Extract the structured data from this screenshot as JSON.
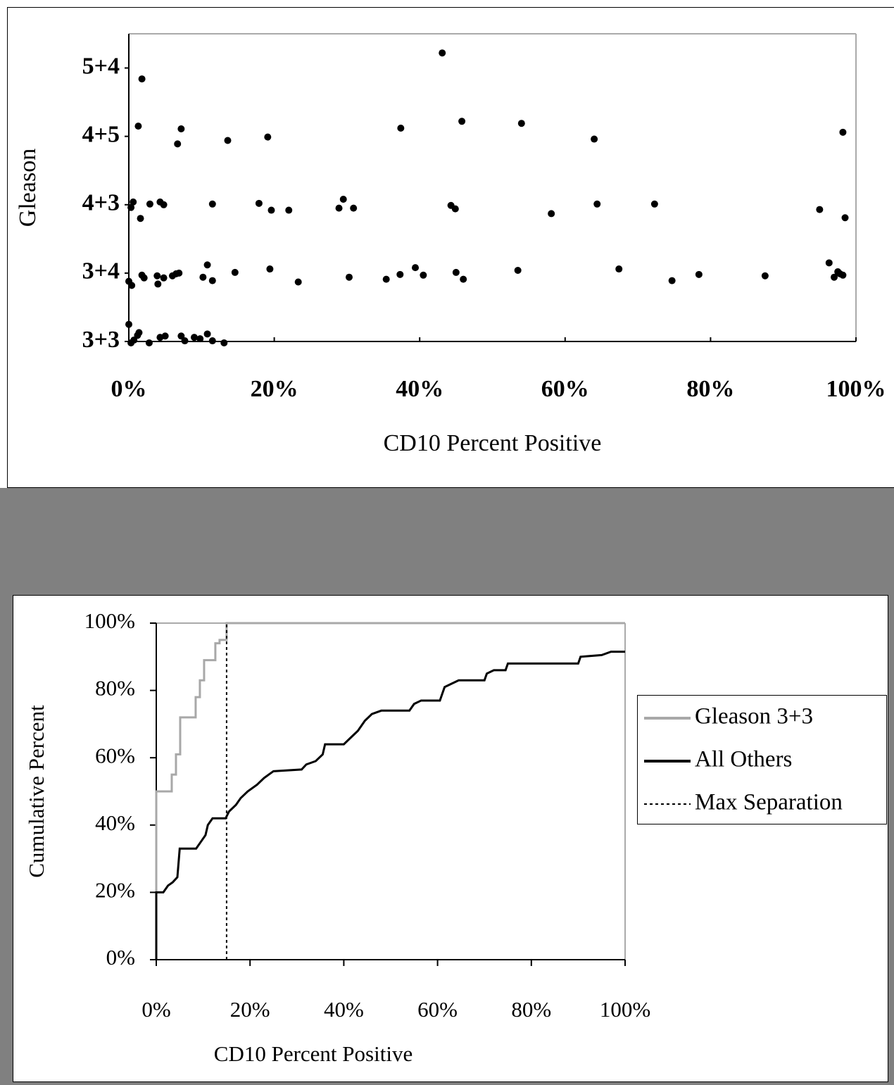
{
  "chart_data": [
    {
      "type": "scatter",
      "y_label": "Gleason",
      "x_label": "CD10 Percent Positive",
      "xlim": [
        0,
        100
      ],
      "xticks": [
        {
          "value": 0,
          "label": "0%"
        },
        {
          "value": 20,
          "label": "20%"
        },
        {
          "value": 40,
          "label": "40%"
        },
        {
          "value": 60,
          "label": "60%"
        },
        {
          "value": 80,
          "label": "80%"
        },
        {
          "value": 100,
          "label": "100%"
        }
      ],
      "ylim": [
        1,
        5.5
      ],
      "yticks": [
        {
          "value": 1,
          "label": "3+3"
        },
        {
          "value": 2,
          "label": "3+4"
        },
        {
          "value": 3,
          "label": "4+3"
        },
        {
          "value": 4,
          "label": "4+5"
        },
        {
          "value": 5,
          "label": "5+4"
        }
      ],
      "grid": false,
      "series": [
        {
          "color": "#000000",
          "x": [
            1.8,
            43.1,
            1.3,
            6.7,
            7.2,
            13.6,
            19.1,
            37.4,
            45.8,
            54.0,
            64.0,
            98.2,
            0.3,
            0.6,
            1.6,
            2.9,
            4.3,
            4.8,
            11.5,
            17.9,
            19.6,
            22.0,
            28.9,
            29.5,
            30.9,
            44.3,
            44.9,
            58.1,
            64.4,
            72.3,
            95.0,
            98.5,
            0,
            0.4,
            1.8,
            2.1,
            3.9,
            4.0,
            4.8,
            6.0,
            6.5,
            6.9,
            10.2,
            10.8,
            11.5,
            14.6,
            19.4,
            23.3,
            30.3,
            35.4,
            37.3,
            39.4,
            40.5,
            45.0,
            46.0,
            53.5,
            67.4,
            74.7,
            78.4,
            87.5,
            96.3,
            97.0,
            97.5,
            97.8,
            98.2,
            0,
            0.3,
            0.7,
            1.2,
            1.4,
            2.8,
            4.3,
            5.0,
            7.2,
            7.7,
            9.0,
            9.8,
            10.8,
            11.5,
            13.1
          ],
          "values": [
            4.84,
            5.22,
            4.15,
            3.89,
            4.11,
            3.94,
            3.99,
            4.12,
            4.22,
            4.19,
            3.96,
            4.06,
            2.96,
            3.04,
            2.8,
            3.01,
            3.04,
            3.0,
            3.01,
            3.02,
            2.92,
            2.92,
            2.95,
            3.08,
            2.95,
            2.99,
            2.94,
            2.87,
            3.01,
            3.01,
            2.93,
            2.81,
            1.88,
            1.82,
            1.97,
            1.93,
            1.96,
            1.84,
            1.93,
            1.96,
            1.99,
            2.0,
            1.94,
            2.12,
            1.89,
            2.01,
            2.06,
            1.87,
            1.94,
            1.91,
            1.98,
            2.08,
            1.97,
            2.01,
            1.91,
            2.04,
            2.06,
            1.89,
            1.98,
            1.96,
            2.15,
            1.94,
            2.02,
            1.99,
            1.97,
            1.25,
            0.98,
            1.02,
            1.09,
            1.13,
            0.98,
            1.06,
            1.08,
            1.08,
            1.01,
            1.06,
            1.04,
            1.11,
            1.01,
            0.98
          ]
        }
      ]
    },
    {
      "type": "line",
      "y_label": "Cumulative Percent",
      "x_label": "CD10 Percent Positive",
      "xlim": [
        0,
        100
      ],
      "xticks": [
        {
          "value": 0,
          "label": "0%"
        },
        {
          "value": 20,
          "label": "20%"
        },
        {
          "value": 40,
          "label": "40%"
        },
        {
          "value": 60,
          "label": "60%"
        },
        {
          "value": 80,
          "label": "80%"
        },
        {
          "value": 100,
          "label": "100%"
        }
      ],
      "ylim": [
        0,
        100
      ],
      "yticks": [
        {
          "value": 0,
          "label": "0%"
        },
        {
          "value": 20,
          "label": "20%"
        },
        {
          "value": 40,
          "label": "40%"
        },
        {
          "value": 60,
          "label": "60%"
        },
        {
          "value": 80,
          "label": "80%"
        },
        {
          "value": 100,
          "label": "100%"
        }
      ],
      "grid": false,
      "legend": "right",
      "series": [
        {
          "name": "Gleason 3+3",
          "color": "#a8a8a8",
          "dashed": false,
          "x": [
            0,
            0,
            3.3,
            3.3,
            4.2,
            4.2,
            5.1,
            5.1,
            8.4,
            8.4,
            9.3,
            9.3,
            10.2,
            10.2,
            12.6,
            12.6,
            13.5,
            13.5,
            15,
            15,
            100
          ],
          "values": [
            0,
            50,
            50,
            55,
            55,
            61,
            61,
            72,
            72,
            78,
            78,
            83,
            83,
            89,
            89,
            94,
            94,
            95,
            95,
            100,
            100
          ]
        },
        {
          "name": "All Others",
          "color": "#000000",
          "dashed": false,
          "x": [
            0,
            0,
            1.5,
            2.5,
            3.5,
            4.5,
            5,
            8.5,
            9.5,
            10.5,
            11,
            12,
            14.8,
            15.5,
            17,
            18,
            19.5,
            21.5,
            23,
            25,
            31,
            32,
            34,
            35.5,
            36,
            40,
            41.5,
            43,
            44.5,
            46,
            48,
            54,
            55,
            56.5,
            60.5,
            61,
            61.5,
            63,
            64.5,
            70,
            70.5,
            72,
            74.5,
            75,
            90,
            90.5,
            95,
            97,
            100
          ],
          "values": [
            0,
            20,
            20,
            22,
            23,
            24.5,
            33,
            33,
            35,
            37,
            40,
            42,
            42,
            44,
            46,
            48,
            50,
            52,
            54,
            56,
            56.5,
            58,
            59,
            61,
            64,
            64,
            66,
            68,
            71,
            73,
            74,
            74,
            76,
            77,
            77,
            79,
            81,
            82,
            83,
            83,
            85,
            86,
            86,
            88,
            88,
            90,
            90.5,
            91.5,
            91.5
          ]
        },
        {
          "name": "Max Separation",
          "color": "#000000",
          "dashed": true,
          "x": [
            15,
            15
          ],
          "values": [
            0,
            100
          ]
        }
      ]
    }
  ]
}
